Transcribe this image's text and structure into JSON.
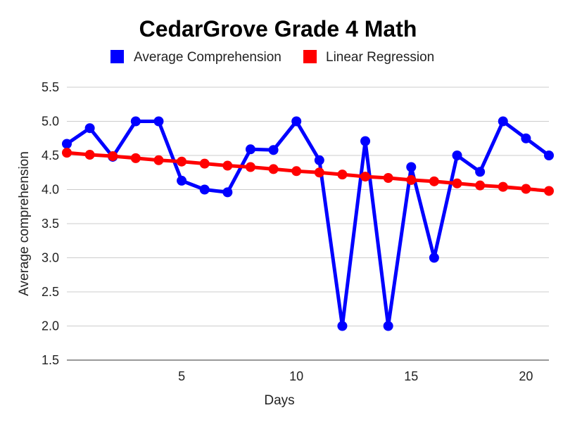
{
  "chart_data": {
    "type": "line",
    "title": "CedarGrove Grade 4 Math",
    "xlabel": "Days",
    "ylabel": "Average comprehension",
    "xlim": [
      0,
      21
    ],
    "ylim": [
      1.5,
      5.5
    ],
    "x_ticks": [
      5,
      10,
      15,
      20
    ],
    "y_ticks": [
      "1.5",
      "2.0",
      "2.5",
      "3.0",
      "3.5",
      "4.0",
      "4.5",
      "5.0",
      "5.5"
    ],
    "grid": true,
    "legend_position": "top",
    "x": [
      0,
      1,
      2,
      3,
      4,
      5,
      6,
      7,
      8,
      9,
      10,
      11,
      12,
      13,
      14,
      15,
      16,
      17,
      18,
      19,
      20,
      21
    ],
    "series": [
      {
        "name": "Average Comprehension",
        "color": "#0000ff",
        "values": [
          4.67,
          4.9,
          4.48,
          5.0,
          5.0,
          4.13,
          4.0,
          3.96,
          4.59,
          4.58,
          5.0,
          4.43,
          2.0,
          4.71,
          2.0,
          4.33,
          3.0,
          4.5,
          4.26,
          5.0,
          4.75,
          4.5
        ]
      },
      {
        "name": "Linear Regression",
        "color": "#ff0000",
        "values": [
          4.54,
          4.51,
          4.49,
          4.46,
          4.43,
          4.41,
          4.38,
          4.35,
          4.33,
          4.3,
          4.27,
          4.25,
          4.22,
          4.19,
          4.17,
          4.14,
          4.12,
          4.09,
          4.06,
          4.04,
          4.01,
          3.98
        ]
      }
    ]
  }
}
